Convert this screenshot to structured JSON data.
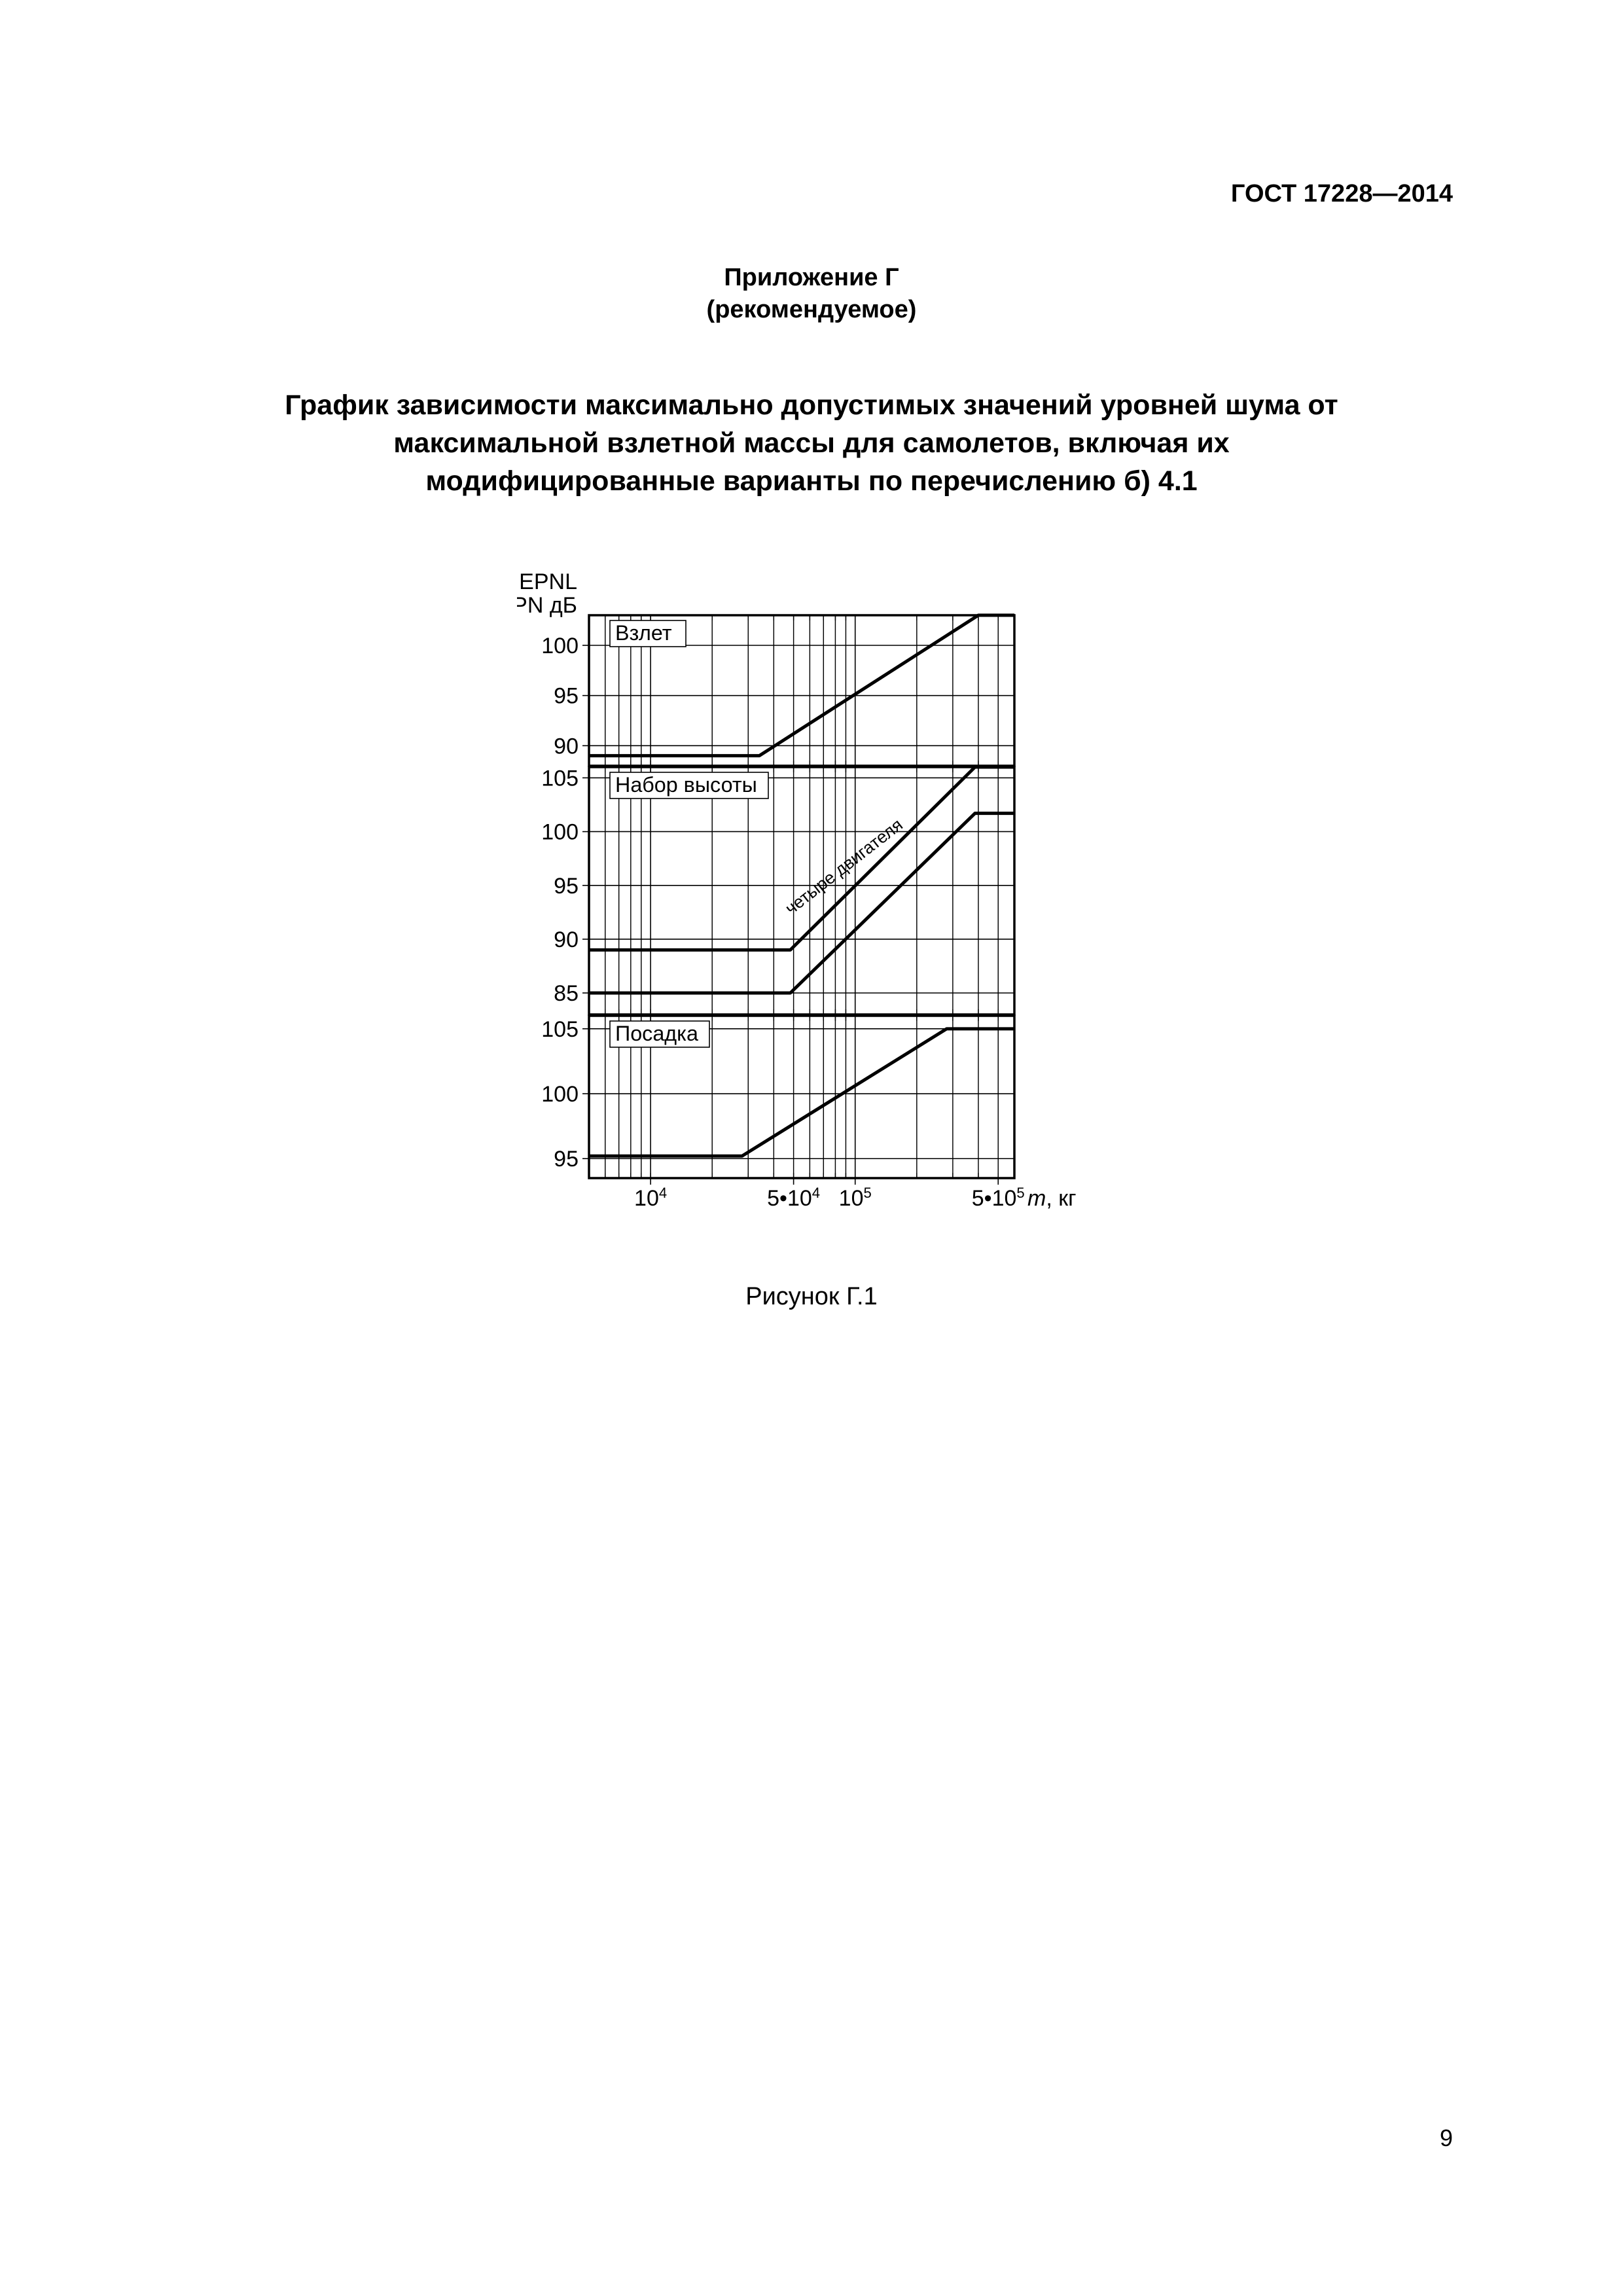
{
  "document": {
    "standard_code": "ГОСТ  17228—2014",
    "appendix_label": "Приложение Г",
    "appendix_note": "(рекомендуемое)",
    "title_line1": "График зависимости максимально допустимых значений уровней шума от",
    "title_line2": "максимальной взлетной массы для самолетов, включая их",
    "title_line3": "модифицированные варианты по перечислению б) 4.1",
    "figure_caption": "Рисунок Г.1",
    "page_number": "9"
  },
  "chart": {
    "background_color": "#ffffff",
    "axis_color": "#000000",
    "grid_color": "#000000",
    "line_color": "#000000",
    "axis_stroke_width": 3.5,
    "grid_stroke_width": 1.6,
    "line_stroke_width": 5,
    "label_fontsize": 34,
    "tick_fontsize": 34,
    "y_axis_label_line1": "EPNL",
    "y_axis_label_line2": "EPN дБ",
    "x_axis_label": "m, кг",
    "x_axis_italic_var": "m",
    "x_axis_unit": ", кг",
    "x_scale": "log",
    "x_min": 5000,
    "x_max": 600000,
    "x_ticks_major": [
      {
        "value": 10000,
        "label_base": "10",
        "label_exp": "4"
      },
      {
        "value": 50000,
        "label_prefix": "5•",
        "label_base": "10",
        "label_exp": "4"
      },
      {
        "value": 100000,
        "label_base": "10",
        "label_exp": "5"
      },
      {
        "value": 500000,
        "label_prefix": "5•",
        "label_base": "10",
        "label_exp": "5"
      }
    ],
    "panels": [
      {
        "id": "takeoff",
        "label": "Взлет",
        "y_min": 88,
        "y_max": 103,
        "y_ticks": [
          90,
          95,
          100
        ],
        "series": [
          {
            "points": [
              {
                "x": 5000,
                "y": 89
              },
              {
                "x": 34000,
                "y": 89
              },
              {
                "x": 400000,
                "y": 103
              },
              {
                "x": 600000,
                "y": 103
              }
            ]
          }
        ]
      },
      {
        "id": "climb",
        "label": "Набор высоты",
        "rotated_label": "четыре двигателя",
        "y_min": 83,
        "y_max": 106,
        "y_ticks": [
          85,
          90,
          95,
          100,
          105
        ],
        "series": [
          {
            "points": [
              {
                "x": 5000,
                "y": 89
              },
              {
                "x": 48200,
                "y": 89
              },
              {
                "x": 385000,
                "y": 106
              },
              {
                "x": 600000,
                "y": 106
              }
            ]
          },
          {
            "points": [
              {
                "x": 5000,
                "y": 85
              },
              {
                "x": 48200,
                "y": 85
              },
              {
                "x": 385000,
                "y": 101.7
              },
              {
                "x": 600000,
                "y": 101.7
              }
            ]
          }
        ]
      },
      {
        "id": "landing",
        "label": "Посадка",
        "y_min": 93.5,
        "y_max": 106,
        "y_ticks": [
          95,
          100,
          105
        ],
        "series": [
          {
            "points": [
              {
                "x": 5000,
                "y": 95.2
              },
              {
                "x": 28000,
                "y": 95.2
              },
              {
                "x": 280000,
                "y": 105
              },
              {
                "x": 600000,
                "y": 105
              }
            ]
          }
        ]
      }
    ]
  }
}
